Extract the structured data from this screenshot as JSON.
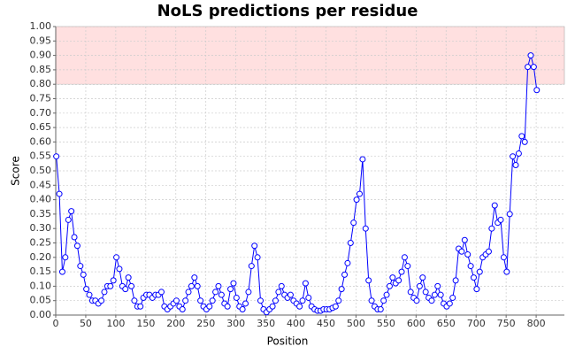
{
  "chart_data": {
    "type": "line",
    "title": "NoLS predictions per residue",
    "x_label": "Position",
    "y_label": "Score",
    "x": [
      1,
      6,
      11,
      16,
      21,
      26,
      31,
      36,
      41,
      46,
      51,
      56,
      61,
      66,
      71,
      76,
      81,
      86,
      91,
      96,
      101,
      106,
      111,
      116,
      121,
      126,
      131,
      136,
      141,
      146,
      151,
      156,
      161,
      166,
      171,
      176,
      181,
      186,
      191,
      196,
      201,
      206,
      211,
      216,
      221,
      226,
      231,
      236,
      241,
      246,
      251,
      256,
      261,
      266,
      271,
      276,
      281,
      286,
      291,
      296,
      301,
      306,
      311,
      316,
      321,
      326,
      331,
      336,
      341,
      346,
      351,
      356,
      361,
      366,
      371,
      376,
      381,
      386,
      391,
      396,
      401,
      406,
      411,
      416,
      421,
      426,
      431,
      436,
      441,
      446,
      451,
      456,
      461,
      466,
      471,
      476,
      481,
      486,
      491,
      496,
      501,
      506,
      511,
      516,
      521,
      526,
      531,
      536,
      541,
      546,
      551,
      556,
      561,
      566,
      571,
      576,
      581,
      586,
      591,
      596,
      601,
      606,
      611,
      616,
      621,
      626,
      631,
      636,
      641,
      646,
      651,
      656,
      661,
      666,
      671,
      676,
      681,
      686,
      691,
      696,
      701,
      706,
      711,
      716,
      721,
      726,
      731,
      736,
      741,
      746,
      751,
      756,
      761,
      766,
      771,
      776,
      781,
      786,
      791,
      796,
      801
    ],
    "values": [
      0.55,
      0.42,
      0.15,
      0.2,
      0.33,
      0.36,
      0.27,
      0.24,
      0.17,
      0.14,
      0.09,
      0.07,
      0.05,
      0.05,
      0.04,
      0.05,
      0.08,
      0.1,
      0.1,
      0.12,
      0.2,
      0.16,
      0.1,
      0.09,
      0.13,
      0.1,
      0.05,
      0.03,
      0.03,
      0.06,
      0.07,
      0.07,
      0.06,
      0.07,
      0.07,
      0.08,
      0.03,
      0.02,
      0.03,
      0.04,
      0.05,
      0.03,
      0.02,
      0.05,
      0.08,
      0.1,
      0.13,
      0.1,
      0.05,
      0.03,
      0.02,
      0.03,
      0.05,
      0.08,
      0.1,
      0.07,
      0.04,
      0.03,
      0.09,
      0.11,
      0.06,
      0.03,
      0.02,
      0.04,
      0.08,
      0.17,
      0.24,
      0.2,
      0.05,
      0.02,
      0.01,
      0.02,
      0.03,
      0.05,
      0.08,
      0.1,
      0.07,
      0.06,
      0.07,
      0.05,
      0.04,
      0.03,
      0.05,
      0.11,
      0.06,
      0.03,
      0.02,
      0.015,
      0.015,
      0.02,
      0.02,
      0.02,
      0.025,
      0.03,
      0.05,
      0.09,
      0.14,
      0.18,
      0.25,
      0.32,
      0.4,
      0.42,
      0.54,
      0.3,
      0.12,
      0.05,
      0.03,
      0.02,
      0.02,
      0.05,
      0.07,
      0.1,
      0.13,
      0.11,
      0.12,
      0.15,
      0.2,
      0.17,
      0.08,
      0.06,
      0.05,
      0.1,
      0.13,
      0.08,
      0.06,
      0.05,
      0.07,
      0.1,
      0.07,
      0.04,
      0.03,
      0.04,
      0.06,
      0.12,
      0.23,
      0.22,
      0.26,
      0.21,
      0.17,
      0.13,
      0.09,
      0.15,
      0.2,
      0.21,
      0.22,
      0.3,
      0.38,
      0.32,
      0.33,
      0.2,
      0.15,
      0.35,
      0.55,
      0.52,
      0.56,
      0.62,
      0.6,
      0.86,
      0.9,
      0.86,
      0.78
    ],
    "color": "#0000ff",
    "band": [
      0.8,
      1.0
    ],
    "band_color": "#ffe0e0",
    "xlim": [
      0,
      847
    ],
    "xticks": [
      0,
      50,
      100,
      150,
      200,
      250,
      300,
      350,
      400,
      450,
      500,
      550,
      600,
      650,
      700,
      750,
      800
    ],
    "ylim": [
      0,
      1
    ],
    "yticks": [
      {
        "value": 0,
        "label": "0.00"
      },
      {
        "value": 0.05,
        "label": "0.05"
      },
      {
        "value": 0.1,
        "label": "0.10"
      },
      {
        "value": 0.15,
        "label": "0.15"
      },
      {
        "value": 0.2,
        "label": "0.20"
      },
      {
        "value": 0.25,
        "label": "0.25"
      },
      {
        "value": 0.3,
        "label": "0.30"
      },
      {
        "value": 0.35,
        "label": "0.35"
      },
      {
        "value": 0.4,
        "label": "0.40"
      },
      {
        "value": 0.45,
        "label": "0.45"
      },
      {
        "value": 0.5,
        "label": "0.50"
      },
      {
        "value": 0.55,
        "label": "0.55"
      },
      {
        "value": 0.6,
        "label": "0.60"
      },
      {
        "value": 0.65,
        "label": "0.65"
      },
      {
        "value": 0.7,
        "label": "0.70"
      },
      {
        "value": 0.75,
        "label": "0.75"
      },
      {
        "value": 0.8,
        "label": "0.80"
      },
      {
        "value": 0.85,
        "label": "0.85"
      },
      {
        "value": 0.9,
        "label": "0.90"
      },
      {
        "value": 0.95,
        "label": "0.95"
      },
      {
        "value": 1,
        "label": "1.00"
      }
    ],
    "grid": true
  }
}
